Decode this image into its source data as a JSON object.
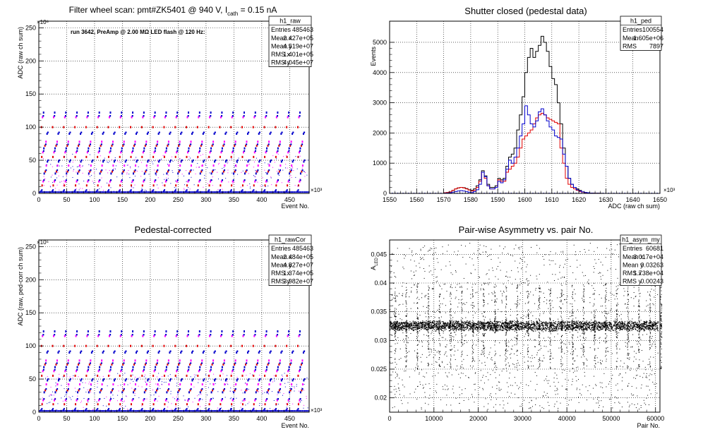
{
  "chart_data": [
    {
      "type": "scatter",
      "title": "Filter wheel scan: pmt#ZK5401 @   940 V, I",
      "title_sub": "cath",
      "title_tail": " = 0.15 nA",
      "annotation": "run 3642, PreAmp @ 2.00 MΩ LED flash @  120 Hz:",
      "xlabel": "Event No.",
      "ylabel": "ADC (raw ch sum)",
      "x_exponent": "×10³",
      "y_exponent": "×10⁶",
      "xlim": [
        0,
        485
      ],
      "ylim": [
        0,
        260
      ],
      "x_ticks": [
        0,
        50,
        100,
        150,
        200,
        250,
        300,
        350,
        400,
        450
      ],
      "y_ticks": [
        0,
        50,
        100,
        150,
        200,
        250
      ],
      "stats": {
        "name": "h1_raw",
        "rows": [
          [
            "Entries",
            "485463"
          ],
          [
            "Mean x",
            "2.427e+05"
          ],
          [
            "Mean y",
            "4.519e+07"
          ],
          [
            "RMS x",
            "1.401e+05"
          ],
          [
            "RMS y",
            "4.045e+07"
          ]
        ]
      },
      "colors": {
        "red": "#e00000",
        "blue": "#0000cc",
        "magenta": "#ff00ff"
      },
      "levels": [
        3,
        12,
        18,
        30,
        33,
        42,
        48,
        55,
        62,
        68,
        72,
        78,
        90,
        100,
        115,
        122
      ],
      "cycle_period": 20,
      "cycle_start": 4
    },
    {
      "type": "line",
      "title": "Shutter closed (pedestal data)",
      "xlabel": "ADC (raw ch sum)",
      "ylabel": "Events",
      "x_exponent": "×10³",
      "xlim": [
        1550,
        1650
      ],
      "ylim": [
        0,
        5700
      ],
      "x_ticks": [
        1550,
        1560,
        1570,
        1580,
        1590,
        1600,
        1610,
        1620,
        1630,
        1640,
        1650
      ],
      "y_ticks": [
        0,
        1000,
        2000,
        3000,
        4000,
        5000
      ],
      "stats": {
        "name": "h1_ped",
        "rows": [
          [
            "Entries",
            "100554"
          ],
          [
            "Mean",
            "1.605e+06"
          ],
          [
            "RMS",
            "7897"
          ]
        ]
      },
      "bin_width": 1,
      "series": [
        {
          "color": "#000000",
          "x": [
            1570,
            1571,
            1572,
            1573,
            1574,
            1575,
            1576,
            1577,
            1578,
            1579,
            1580,
            1581,
            1582,
            1583,
            1584,
            1585,
            1586,
            1587,
            1588,
            1589,
            1590,
            1591,
            1592,
            1593,
            1594,
            1595,
            1596,
            1597,
            1598,
            1599,
            1600,
            1601,
            1602,
            1603,
            1604,
            1605,
            1606,
            1607,
            1608,
            1609,
            1610,
            1611,
            1612,
            1613,
            1614,
            1615,
            1616,
            1617,
            1618,
            1619,
            1620,
            1621,
            1622,
            1623,
            1624,
            1625,
            1626,
            1627,
            1628,
            1629
          ],
          "values": [
            20,
            30,
            50,
            100,
            150,
            180,
            200,
            190,
            160,
            120,
            100,
            150,
            250,
            450,
            750,
            580,
            300,
            200,
            200,
            250,
            500,
            450,
            500,
            900,
            1200,
            1300,
            1500,
            2100,
            2600,
            3200,
            4000,
            4500,
            4800,
            4500,
            4700,
            4900,
            5200,
            5000,
            4700,
            4200,
            3800,
            3600,
            3000,
            2300,
            1500,
            900,
            500,
            300,
            200,
            150,
            100,
            50,
            30,
            20,
            10,
            10,
            5,
            5,
            3,
            0
          ]
        },
        {
          "color": "#e00000",
          "x": [
            1570,
            1571,
            1572,
            1573,
            1574,
            1575,
            1576,
            1577,
            1578,
            1579,
            1580,
            1581,
            1582,
            1583,
            1584,
            1585,
            1586,
            1587,
            1588,
            1589,
            1590,
            1591,
            1592,
            1593,
            1594,
            1595,
            1596,
            1597,
            1598,
            1599,
            1600,
            1601,
            1602,
            1603,
            1604,
            1605,
            1606,
            1607,
            1608,
            1609,
            1610,
            1611,
            1612,
            1613,
            1614,
            1615,
            1616,
            1617,
            1618,
            1619,
            1620,
            1621,
            1622,
            1623,
            1624,
            1625,
            1626,
            1627,
            1628,
            1629
          ],
          "values": [
            20,
            30,
            50,
            100,
            150,
            180,
            200,
            180,
            150,
            110,
            80,
            100,
            200,
            400,
            700,
            500,
            250,
            150,
            150,
            200,
            450,
            400,
            400,
            700,
            800,
            900,
            1000,
            1200,
            1500,
            1800,
            1900,
            2000,
            2100,
            2300,
            2500,
            2600,
            2650,
            2600,
            2500,
            2450,
            2400,
            2350,
            2300,
            1500,
            1000,
            500,
            300,
            200,
            150,
            100,
            60,
            40,
            20,
            10,
            5,
            5,
            3,
            2,
            1,
            0
          ]
        },
        {
          "color": "#0000cc",
          "x": [
            1570,
            1571,
            1572,
            1573,
            1574,
            1575,
            1576,
            1577,
            1578,
            1579,
            1580,
            1581,
            1582,
            1583,
            1584,
            1585,
            1586,
            1587,
            1588,
            1589,
            1590,
            1591,
            1592,
            1593,
            1594,
            1595,
            1596,
            1597,
            1598,
            1599,
            1600,
            1601,
            1602,
            1603,
            1604,
            1605,
            1606,
            1607,
            1608,
            1609,
            1610,
            1611,
            1612,
            1613,
            1614,
            1615,
            1616,
            1617,
            1618,
            1619,
            1620,
            1621,
            1622,
            1623,
            1624,
            1625,
            1626,
            1627,
            1628,
            1629
          ],
          "values": [
            5,
            10,
            20,
            40,
            60,
            80,
            90,
            80,
            60,
            40,
            30,
            60,
            120,
            300,
            700,
            550,
            250,
            150,
            150,
            200,
            400,
            350,
            450,
            800,
            1100,
            1000,
            1200,
            1500,
            1900,
            2300,
            2900,
            2600,
            2300,
            2200,
            2400,
            2700,
            2800,
            2600,
            2400,
            2200,
            2100,
            1900,
            1850,
            1800,
            1300,
            900,
            500,
            300,
            200,
            120,
            80,
            50,
            30,
            20,
            10,
            5,
            3,
            2,
            1,
            0
          ]
        }
      ]
    },
    {
      "type": "scatter",
      "title": "Pedestal-corrected",
      "xlabel": "Event No.",
      "ylabel": "ADC (raw, ped-corr ch sum)",
      "x_exponent": "×10³",
      "y_exponent": "×10⁶",
      "xlim": [
        0,
        485
      ],
      "ylim": [
        0,
        260
      ],
      "x_ticks": [
        0,
        50,
        100,
        150,
        200,
        250,
        300,
        350,
        400,
        450
      ],
      "y_ticks": [
        0,
        50,
        100,
        150,
        200,
        250
      ],
      "stats": {
        "name": "h1_rawCor",
        "rows": [
          [
            "Entries",
            "485463"
          ],
          [
            "Mean x",
            "2.484e+05"
          ],
          [
            "Mean y",
            "4.827e+07"
          ],
          [
            "RMS x",
            "1.374e+05"
          ],
          [
            "RMS y",
            "3.982e+07"
          ]
        ]
      },
      "colors": {
        "red": "#e00000",
        "blue": "#0000cc",
        "magenta": "#ff00ff"
      },
      "levels": [
        3,
        12,
        18,
        30,
        33,
        42,
        48,
        55,
        62,
        68,
        72,
        78,
        90,
        100,
        115,
        122
      ],
      "cycle_period": 20,
      "cycle_start": 4
    },
    {
      "type": "scatter",
      "title": "Pair-wise Asymmetry vs. pair No.",
      "xlabel": "Pair No.",
      "ylabel": "A",
      "ylabel_sub": "LED",
      "xlim": [
        0,
        61000
      ],
      "ylim": [
        0.0175,
        0.0475
      ],
      "x_ticks": [
        0,
        10000,
        20000,
        30000,
        40000,
        50000,
        60000
      ],
      "y_ticks": [
        0.02,
        0.025,
        0.03,
        0.035,
        0.04,
        0.045
      ],
      "y_tick_labels": [
        "0.02",
        "0.025",
        "0.03",
        "0.035",
        "0.04",
        "0.045"
      ],
      "stats": {
        "name": "h1_asym_my",
        "rows": [
          [
            "Entries",
            "60681"
          ],
          [
            "Mean x",
            "3.017e+04"
          ],
          [
            "Mean y",
            "0.03263"
          ],
          [
            "RMS x",
            "1.738e+04"
          ],
          [
            "RMS y",
            "0.00243"
          ]
        ]
      },
      "band_center": 0.0326,
      "band_halfwidth": 0.0008,
      "spike_period": 2500,
      "spike_start": 1200,
      "color": "#000000"
    }
  ]
}
